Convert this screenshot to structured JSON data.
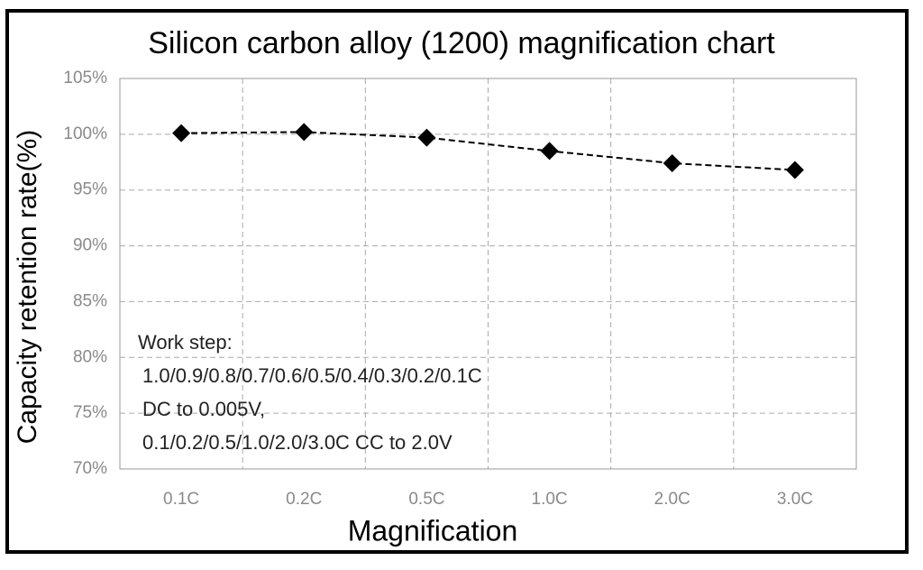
{
  "chart_data": {
    "type": "line",
    "title": "Silicon carbon alloy (1200) magnification chart",
    "x_label": "Magnification",
    "y_label": "Capacity retention rate(%)",
    "categories": [
      "0.1C",
      "0.2C",
      "0.5C",
      "1.0C",
      "2.0C",
      "3.0C"
    ],
    "values": [
      100.1,
      100.2,
      99.7,
      98.5,
      97.4,
      96.8
    ],
    "color": "#000000",
    "ylim": [
      70,
      105
    ],
    "yticks": [
      {
        "value": 70,
        "label": "70%"
      },
      {
        "value": 75,
        "label": "75%"
      },
      {
        "value": 80,
        "label": "80%"
      },
      {
        "value": 85,
        "label": "85%"
      },
      {
        "value": 90,
        "label": "90%"
      },
      {
        "value": 95,
        "label": "95%"
      },
      {
        "value": 100,
        "label": "100%"
      },
      {
        "value": 105,
        "label": "105%"
      }
    ],
    "grid": true,
    "annotation": [
      "Work step:",
      "1.0/0.9/0.8/0.7/0.6/0.5/0.4/0.3/0.2/0.1C",
      "DC to 0.005V,",
      "0.1/0.2/0.5/1.0/2.0/3.0C CC to 2.0V"
    ]
  }
}
